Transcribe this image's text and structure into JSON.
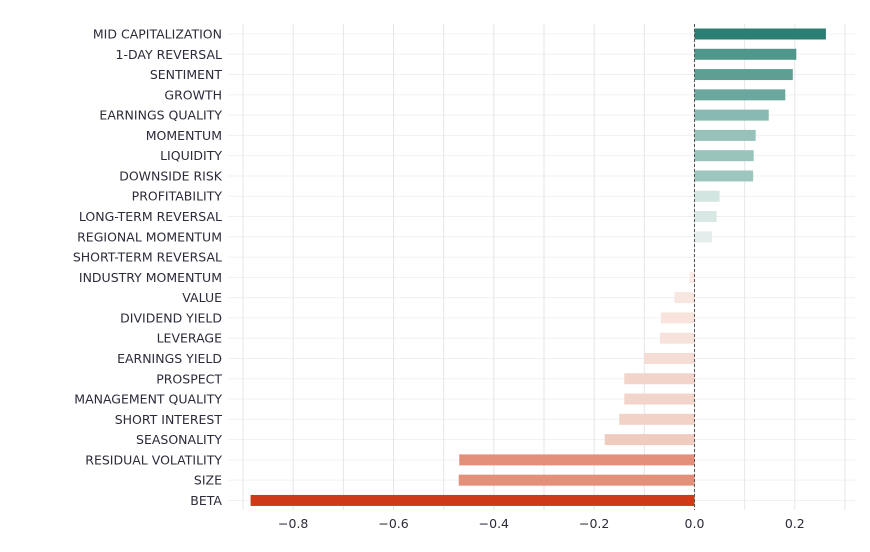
{
  "chart_data": {
    "type": "bar",
    "orientation": "horizontal",
    "categories": [
      "MID CAPITALIZATION",
      "1-DAY REVERSAL",
      "SENTIMENT",
      "GROWTH",
      "EARNINGS QUALITY",
      "MOMENTUM",
      "LIQUIDITY",
      "DOWNSIDE RISK",
      "PROFITABILITY",
      "LONG-TERM REVERSAL",
      "REGIONAL MOMENTUM",
      "SHORT-TERM REVERSAL",
      "INDUSTRY MOMENTUM",
      "VALUE",
      "DIVIDEND YIELD",
      "LEVERAGE",
      "EARNINGS YIELD",
      "PROSPECT",
      "MANAGEMENT QUALITY",
      "SHORT INTEREST",
      "SEASONALITY",
      "RESIDUAL VOLATILITY",
      "SIZE",
      "BETA"
    ],
    "values": [
      0.262,
      0.203,
      0.196,
      0.181,
      0.148,
      0.122,
      0.118,
      0.117,
      0.05,
      0.044,
      0.035,
      -0.002,
      -0.01,
      -0.04,
      -0.067,
      -0.069,
      -0.101,
      -0.14,
      -0.14,
      -0.15,
      -0.179,
      -0.469,
      -0.47,
      -0.885
    ],
    "colors": [
      "#2a7f72",
      "#4f978b",
      "#5e9f94",
      "#6aa79c",
      "#88bab1",
      "#96c2ba",
      "#99c4bc",
      "#9cc6be",
      "#d2e5e1",
      "#d8e8e5",
      "#e3eeec",
      "#f9eeeb",
      "#fbeae6",
      "#f8e6e0",
      "#f8e4dd",
      "#f8e3dc",
      "#f5ddd5",
      "#f2d4ca",
      "#f2d4ca",
      "#f2d2c7",
      "#f0ccc0",
      "#e48f7a",
      "#e48f7a",
      "#cc3a17"
    ],
    "xlim": [
      -0.93,
      0.32
    ],
    "xticks": [
      -0.8,
      -0.6,
      -0.4,
      -0.2,
      0.0,
      0.2
    ],
    "xtick_labels": [
      "−0.8",
      "−0.6",
      "−0.4",
      "−0.2",
      "0.0",
      "0.2"
    ],
    "title": "",
    "xlabel": "",
    "ylabel": "",
    "grid": true,
    "legend": "none"
  }
}
